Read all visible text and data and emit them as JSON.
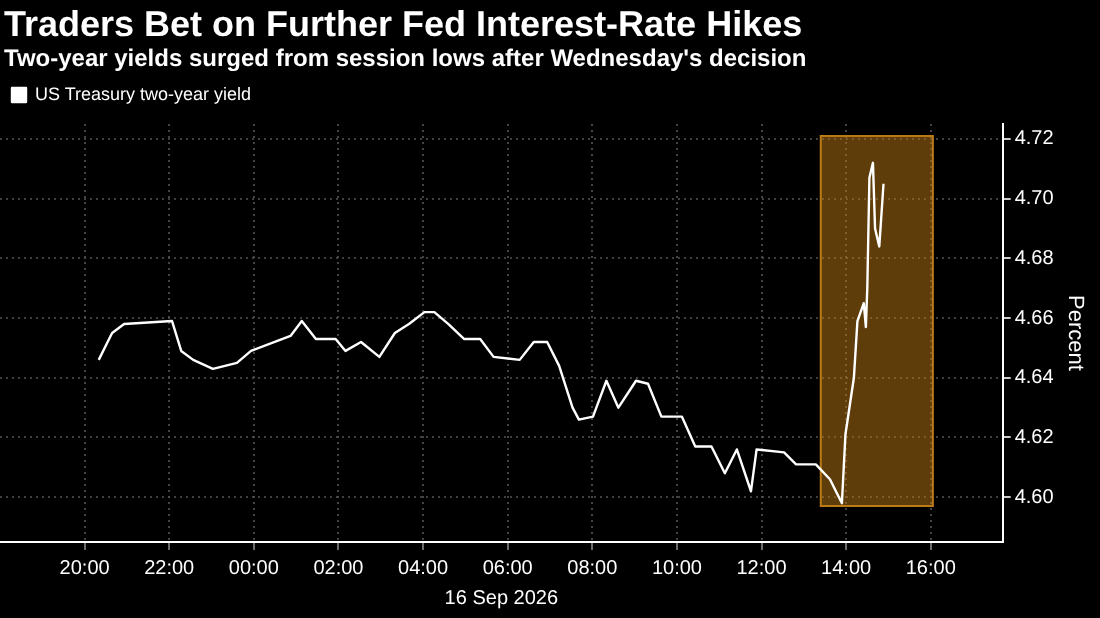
{
  "chart_data": {
    "type": "line",
    "title": "Traders Bet on Further Fed Interest-Rate Hikes",
    "subtitle": "Two-year yields surged from session lows after Wednesday's decision",
    "xlabel": "16 Sep 2026",
    "ylabel": "Percent",
    "x": [
      "2026-09-15T20:20",
      "2026-09-15T20:39",
      "2026-09-15T20:56",
      "2026-09-15T22:04",
      "2026-09-15T22:17",
      "2026-09-15T22:34",
      "2026-09-15T23:02",
      "2026-09-15T23:36",
      "2026-09-15T23:56",
      "2026-09-16T00:52",
      "2026-09-16T01:08",
      "2026-09-16T01:28",
      "2026-09-16T01:56",
      "2026-09-16T02:10",
      "2026-09-16T02:32",
      "2026-09-16T02:58",
      "2026-09-16T03:20",
      "2026-09-16T03:40",
      "2026-09-16T04:02",
      "2026-09-16T04:16",
      "2026-09-16T04:36",
      "2026-09-16T04:58",
      "2026-09-16T05:21",
      "2026-09-16T05:40",
      "2026-09-16T06:17",
      "2026-09-16T06:37",
      "2026-09-16T06:56",
      "2026-09-16T07:13",
      "2026-09-16T07:32",
      "2026-09-16T07:41",
      "2026-09-16T08:01",
      "2026-09-16T08:20",
      "2026-09-16T08:37",
      "2026-09-16T09:02",
      "2026-09-16T09:19",
      "2026-09-16T09:38",
      "2026-09-16T10:07",
      "2026-09-16T10:26",
      "2026-09-16T10:49",
      "2026-09-16T11:08",
      "2026-09-16T11:25",
      "2026-09-16T11:45",
      "2026-09-16T11:53",
      "2026-09-16T12:32",
      "2026-09-16T12:49",
      "2026-09-16T13:17",
      "2026-09-16T13:37",
      "2026-09-16T13:54",
      "2026-09-16T13:59",
      "2026-09-16T14:11",
      "2026-09-16T14:16",
      "2026-09-16T14:25",
      "2026-09-16T14:28",
      "2026-09-16T14:30",
      "2026-09-16T14:33",
      "2026-09-16T14:38",
      "2026-09-16T14:41",
      "2026-09-16T14:47",
      "2026-09-16T14:53"
    ],
    "series": [
      {
        "name": "US Treasury two-year yield",
        "color": "#ffffff",
        "values": [
          4.646,
          4.655,
          4.658,
          4.659,
          4.649,
          4.646,
          4.643,
          4.645,
          4.649,
          4.654,
          4.659,
          4.653,
          4.653,
          4.649,
          4.652,
          4.647,
          4.655,
          4.658,
          4.662,
          4.662,
          4.658,
          4.653,
          4.653,
          4.647,
          4.646,
          4.652,
          4.652,
          4.644,
          4.63,
          4.626,
          4.627,
          4.639,
          4.63,
          4.639,
          4.638,
          4.627,
          4.627,
          4.617,
          4.617,
          4.608,
          4.616,
          4.602,
          4.616,
          4.615,
          4.611,
          4.611,
          4.606,
          4.598,
          4.621,
          4.64,
          4.659,
          4.665,
          4.657,
          4.67,
          4.707,
          4.712,
          4.69,
          4.684,
          4.705
        ]
      }
    ],
    "xlim": [
      "2026-09-15T18:00",
      "2026-09-16T17:42"
    ],
    "xticks": [
      {
        "value": "2026-09-15T20:00",
        "label": "20:00"
      },
      {
        "value": "2026-09-15T22:00",
        "label": "22:00"
      },
      {
        "value": "2026-09-16T00:00",
        "label": "00:00"
      },
      {
        "value": "2026-09-16T02:00",
        "label": "02:00"
      },
      {
        "value": "2026-09-16T04:00",
        "label": "04:00"
      },
      {
        "value": "2026-09-16T06:00",
        "label": "06:00"
      },
      {
        "value": "2026-09-16T08:00",
        "label": "08:00"
      },
      {
        "value": "2026-09-16T10:00",
        "label": "10:00"
      },
      {
        "value": "2026-09-16T12:00",
        "label": "12:00"
      },
      {
        "value": "2026-09-16T14:00",
        "label": "14:00"
      },
      {
        "value": "2026-09-16T16:00",
        "label": "16:00"
      }
    ],
    "ylim": [
      4.585,
      4.725
    ],
    "yticks": [
      {
        "value": 4.6,
        "label": "4.60"
      },
      {
        "value": 4.62,
        "label": "4.62"
      },
      {
        "value": 4.64,
        "label": "4.64"
      },
      {
        "value": 4.66,
        "label": "4.66"
      },
      {
        "value": 4.68,
        "label": "4.68"
      },
      {
        "value": 4.7,
        "label": "4.70"
      },
      {
        "value": 4.72,
        "label": "4.72"
      }
    ],
    "bands": [
      {
        "axis": "x",
        "from": "2026-09-16T13:24",
        "to": "2026-09-16T16:03",
        "color": "#bc7a16"
      }
    ],
    "grid": true,
    "legend": "top left",
    "marker": "none",
    "line_style": "solid"
  }
}
